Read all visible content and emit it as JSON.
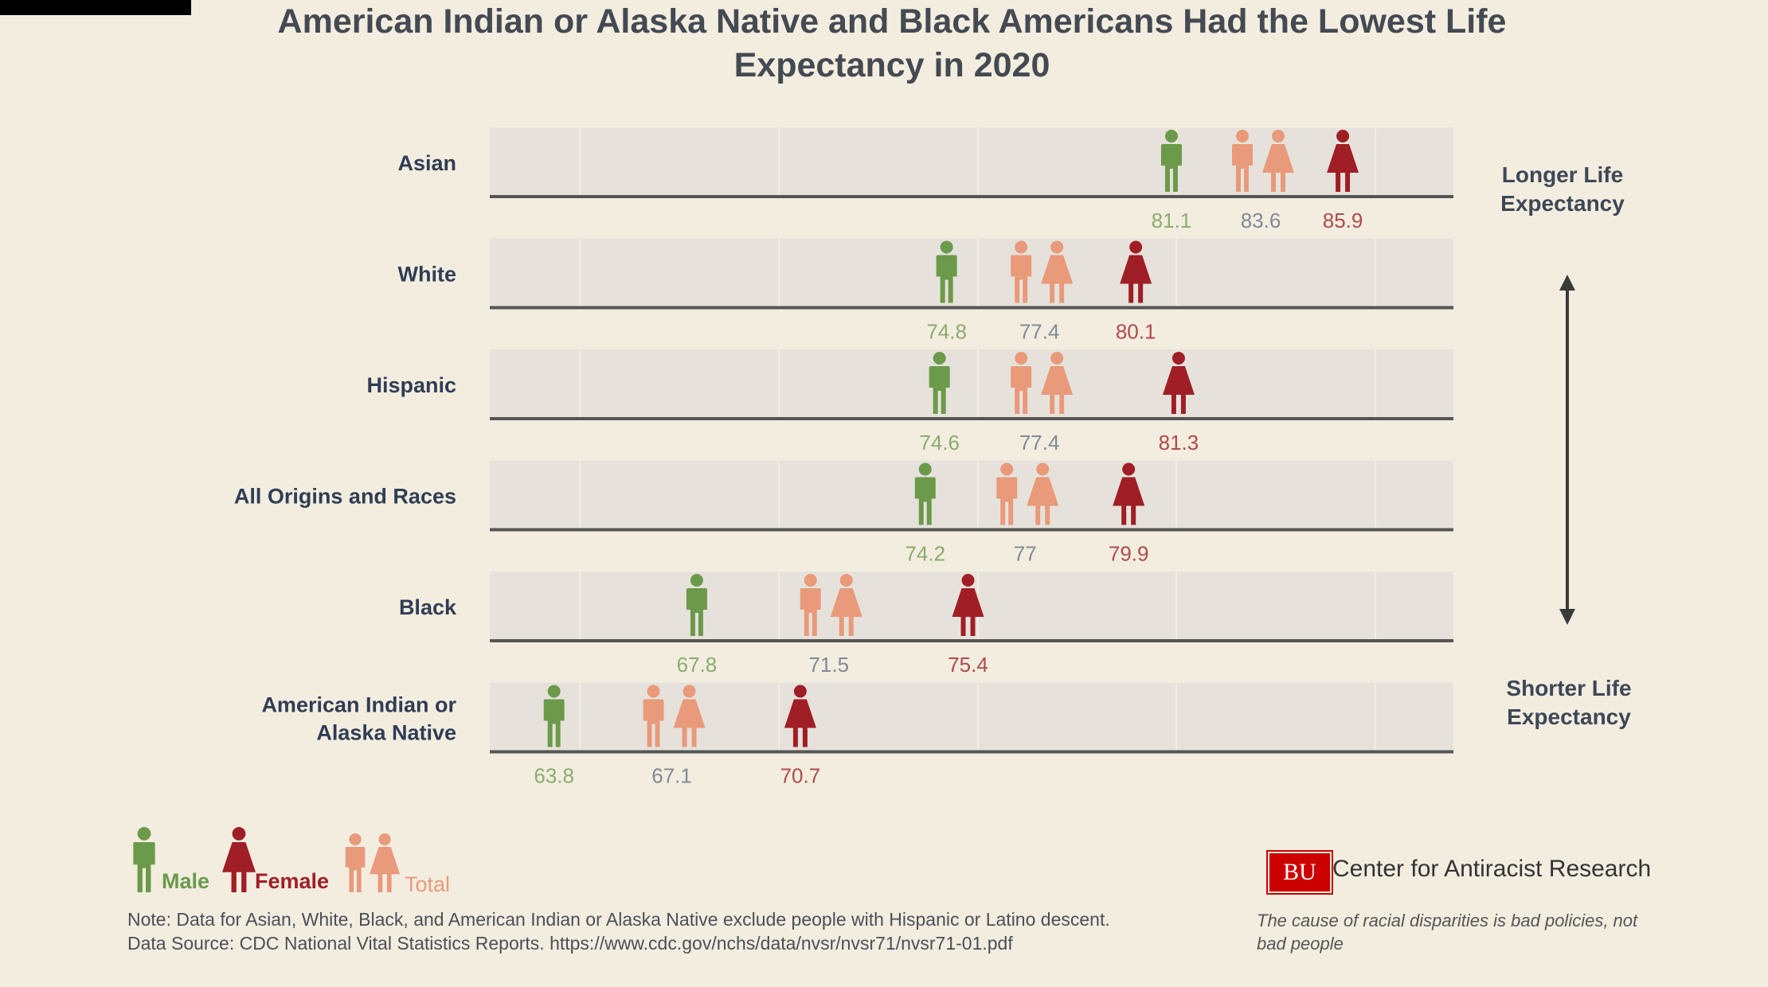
{
  "title": {
    "line1": "American Indian or Alaska Native and Black Americans Had the Lowest Life",
    "line2": "Expectancy in 2020"
  },
  "colors": {
    "background": "#f3ede0",
    "row_band": "#e6e2db",
    "male": "#6b9a4a",
    "female": "#a01e25",
    "total": "#e89a7a",
    "row_label": "#2f3d55",
    "axis_line": "#555555"
  },
  "right_axis": {
    "top_label_line1": "Longer Life",
    "top_label_line2": "Expectancy",
    "bottom_label_line1": "Shorter Life",
    "bottom_label_line2": "Expectancy",
    "arrow_icon": "double-headed-vertical-arrow"
  },
  "chart_data": {
    "type": "scatter",
    "xlim": [
      62,
      89
    ],
    "series_order": [
      "Male",
      "Total",
      "Female"
    ],
    "rows": [
      {
        "group_line1": "Asian",
        "group_line2": "",
        "male": 81.1,
        "total": 83.6,
        "female": 85.9
      },
      {
        "group_line1": "White",
        "group_line2": "",
        "male": 74.8,
        "total": 77.4,
        "female": 80.1
      },
      {
        "group_line1": "Hispanic",
        "group_line2": "",
        "male": 74.6,
        "total": 77.4,
        "female": 81.3
      },
      {
        "group_line1": "All Origins and Races",
        "group_line2": "",
        "male": 74.2,
        "total": 77,
        "female": 79.9
      },
      {
        "group_line1": "Black",
        "group_line2": "",
        "male": 67.8,
        "total": 71.5,
        "female": 75.4
      },
      {
        "group_line1": "American Indian or",
        "group_line2": "Alaska Native",
        "male": 63.8,
        "total": 67.1,
        "female": 70.7
      }
    ]
  },
  "legend": {
    "male_label": "Male",
    "female_label": "Female",
    "total_label": "Total"
  },
  "footer": {
    "note_line1": "Note: Data for Asian, White, Black, and American Indian or Alaska Native exclude people with Hispanic or Latino descent.",
    "note_line2": "Data Source: CDC National Vital Statistics Reports. https://www.cdc.gov/nchs/data/nvsr/nvsr71/nvsr71-01.pdf",
    "logo_text": "BU",
    "center_name": "Center for Antiracist Research",
    "tagline_line1": "The cause of racial disparities is bad policies, not",
    "tagline_line2": "bad people"
  }
}
